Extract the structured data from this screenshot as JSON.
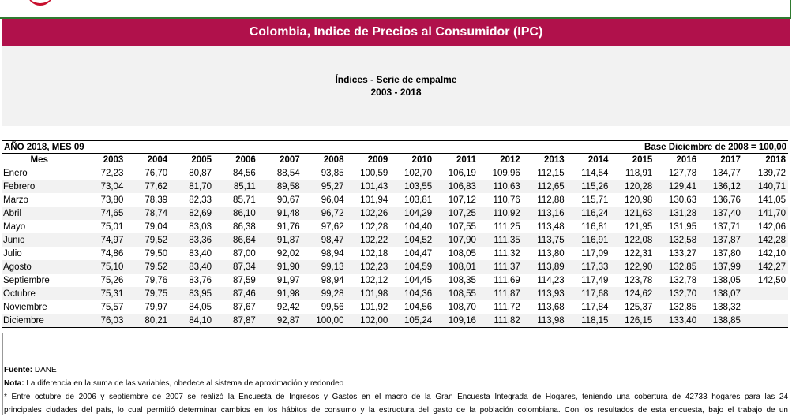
{
  "header": {
    "title": "Colombia, Indice de Precios al Consumidor (IPC)",
    "subtitle_line1": "Índices - Serie de empalme",
    "subtitle_line2": "2003 - 2018"
  },
  "period": {
    "label": "AÑO 2018, MES 09",
    "base": "Base Diciembre de 2008 = 100,00"
  },
  "table": {
    "columns": [
      "Mes",
      "2003",
      "2004",
      "2005",
      "2006",
      "2007",
      "2008",
      "2009",
      "2010",
      "2011",
      "2012",
      "2013",
      "2014",
      "2015",
      "2016",
      "2017",
      "2018"
    ],
    "rows": [
      [
        "Enero",
        "72,23",
        "76,70",
        "80,87",
        "84,56",
        "88,54",
        "93,85",
        "100,59",
        "102,70",
        "106,19",
        "109,96",
        "112,15",
        "114,54",
        "118,91",
        "127,78",
        "134,77",
        "139,72"
      ],
      [
        "Febrero",
        "73,04",
        "77,62",
        "81,70",
        "85,11",
        "89,58",
        "95,27",
        "101,43",
        "103,55",
        "106,83",
        "110,63",
        "112,65",
        "115,26",
        "120,28",
        "129,41",
        "136,12",
        "140,71"
      ],
      [
        "Marzo",
        "73,80",
        "78,39",
        "82,33",
        "85,71",
        "90,67",
        "96,04",
        "101,94",
        "103,81",
        "107,12",
        "110,76",
        "112,88",
        "115,71",
        "120,98",
        "130,63",
        "136,76",
        "141,05"
      ],
      [
        "Abril",
        "74,65",
        "78,74",
        "82,69",
        "86,10",
        "91,48",
        "96,72",
        "102,26",
        "104,29",
        "107,25",
        "110,92",
        "113,16",
        "116,24",
        "121,63",
        "131,28",
        "137,40",
        "141,70"
      ],
      [
        "Mayo",
        "75,01",
        "79,04",
        "83,03",
        "86,38",
        "91,76",
        "97,62",
        "102,28",
        "104,40",
        "107,55",
        "111,25",
        "113,48",
        "116,81",
        "121,95",
        "131,95",
        "137,71",
        "142,06"
      ],
      [
        "Junio",
        "74,97",
        "79,52",
        "83,36",
        "86,64",
        "91,87",
        "98,47",
        "102,22",
        "104,52",
        "107,90",
        "111,35",
        "113,75",
        "116,91",
        "122,08",
        "132,58",
        "137,87",
        "142,28"
      ],
      [
        "Julio",
        "74,86",
        "79,50",
        "83,40",
        "87,00",
        "92,02",
        "98,94",
        "102,18",
        "104,47",
        "108,05",
        "111,32",
        "113,80",
        "117,09",
        "122,31",
        "133,27",
        "137,80",
        "142,10"
      ],
      [
        "Agosto",
        "75,10",
        "79,52",
        "83,40",
        "87,34",
        "91,90",
        "99,13",
        "102,23",
        "104,59",
        "108,01",
        "111,37",
        "113,89",
        "117,33",
        "122,90",
        "132,85",
        "137,99",
        "142,27"
      ],
      [
        "Septiembre",
        "75,26",
        "79,76",
        "83,76",
        "87,59",
        "91,97",
        "98,94",
        "102,12",
        "104,45",
        "108,35",
        "111,69",
        "114,23",
        "117,49",
        "123,78",
        "132,78",
        "138,05",
        "142,50"
      ],
      [
        "Octubre",
        "75,31",
        "79,75",
        "83,95",
        "87,46",
        "91,98",
        "99,28",
        "101,98",
        "104,36",
        "108,55",
        "111,87",
        "113,93",
        "117,68",
        "124,62",
        "132,70",
        "138,07",
        ""
      ],
      [
        "Noviembre",
        "75,57",
        "79,97",
        "84,05",
        "87,67",
        "92,42",
        "99,56",
        "101,92",
        "104,56",
        "108,70",
        "111,72",
        "113,68",
        "117,84",
        "125,37",
        "132,85",
        "138,32",
        ""
      ],
      [
        "Diciembre",
        "76,03",
        "80,21",
        "84,10",
        "87,87",
        "92,87",
        "100,00",
        "102,00",
        "105,24",
        "109,16",
        "111,82",
        "113,98",
        "118,15",
        "126,15",
        "133,40",
        "138,85",
        ""
      ]
    ]
  },
  "footer": {
    "fuente_label": "Fuente:",
    "fuente_text": " DANE",
    "nota_label": "Nota:",
    "nota_text": " La diferencia en la suma de las variables, obedece al sistema de aproximación y redondeo",
    "para1": "* Entre octubre de 2006 y septiembre de 2007 se realizó la Encuesta de Ingresos y Gastos en el macro de la Gran Encuesta Integrada de Hogares, teniendo una cobertura de 42733 hogares para las 24",
    "para2": "principales ciudades del país, lo cual permitió determinar cambios en los hábitos de consumo y la estructura del gasto de la población colombiana. Con los resultados de esta encuesta, bajo el trabajo de un"
  }
}
